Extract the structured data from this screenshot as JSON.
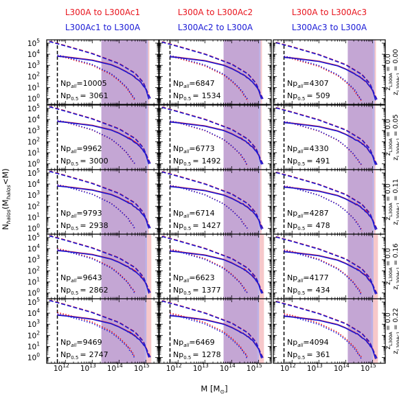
{
  "figure": {
    "xlabel": "M [M",
    "xlabel_sub": "⊙",
    "xlabel_close": "]",
    "ylabel_main": "N",
    "ylabel_sub1": "halos",
    "ylabel_mid": "(M",
    "ylabel_sub2": "halos",
    "ylabel_end": "<M)",
    "xtick_labels": [
      "10",
      "10",
      "10",
      "10"
    ],
    "xtick_exponents": [
      "12",
      "13",
      "14",
      "15"
    ],
    "ytick_labels": [
      "10",
      "10",
      "10",
      "10",
      "10",
      "10"
    ],
    "ytick_exponents": [
      "0",
      "1",
      "2",
      "3",
      "4",
      "5"
    ]
  },
  "colors": {
    "forward": "#e8141d",
    "reverse": "#1a1ad6",
    "red_band": "#f4b5b8",
    "blue_band": "#a9a9ef",
    "overlap_band": "#c4a4d2"
  },
  "columns": [
    {
      "title_red": "L300A to L300Ac1",
      "title_blue": "L300Ac1 to L300A"
    },
    {
      "title_red": "L300A to L300Ac2",
      "title_blue": "L300Ac2 to L300A"
    },
    {
      "title_red": "L300A to L300Ac3",
      "title_blue": "L300Ac3 to L300A"
    }
  ],
  "rows": [
    {
      "label_a": "z",
      "label_a_sub": "L300A",
      "label_a_val": "= 0.0",
      "label_b": "z",
      "label_b_sub": "L300Ac1",
      "label_b_val": "= 0.00"
    },
    {
      "label_a": "z",
      "label_a_sub": "L300A",
      "label_a_val": "= 0.0",
      "label_b": "z",
      "label_b_sub": "L300Ac1",
      "label_b_val": "= 0.05"
    },
    {
      "label_a": "z",
      "label_a_sub": "L300A",
      "label_a_val": "= 0.0",
      "label_b": "z",
      "label_b_sub": "L300Ac1",
      "label_b_val": "= 0.11"
    },
    {
      "label_a": "z",
      "label_a_sub": "L300A",
      "label_a_val": "= 0.0",
      "label_b": "z",
      "label_b_sub": "L300Ac1",
      "label_b_val": "= 0.16"
    },
    {
      "label_a": "z",
      "label_a_sub": "L300A",
      "label_a_val": "= 0.0",
      "label_b": "z",
      "label_b_sub": "L300Ac1",
      "label_b_val": "= 0.22"
    }
  ],
  "chart_data": {
    "type": "line",
    "layout": "grid 5 rows x 3 columns",
    "xscale": "log",
    "yscale": "log",
    "xlim": [
      200000000000.0,
      3000000000000000.0
    ],
    "ylim": [
      0.3,
      200000.0
    ],
    "grid": false,
    "annotation_labels": {
      "np_all": "Np",
      "np_all_sub": "all",
      "np_half": "Np",
      "np_half_sub": "0.5",
      "eq": "="
    },
    "panels": [
      [
        {
          "np_all": "10005",
          "np_half": "3061",
          "red_band": [
            1050000000000000.0,
            1350000000000000.0
          ],
          "blue_band": [
            22000000000000.0,
            1200000000000000.0
          ],
          "overlap": [
            22000000000000.0,
            1050000000000000.0
          ]
        },
        {
          "np_all": "6847",
          "np_half": "1534",
          "red_band": [
            1050000000000000.0,
            1350000000000000.0
          ],
          "blue_band": [
            50000000000000.0,
            1200000000000000.0
          ],
          "overlap": [
            50000000000000.0,
            1050000000000000.0
          ]
        },
        {
          "np_all": "4307",
          "np_half": "509",
          "red_band": [
            1050000000000000.0,
            1350000000000000.0
          ],
          "blue_band": [
            120000000000000.0,
            1200000000000000.0
          ],
          "overlap": [
            120000000000000.0,
            1050000000000000.0
          ]
        }
      ],
      [
        {
          "np_all": "9962",
          "np_half": "3000",
          "red_band": [
            1000000000000000.0,
            1300000000000000.0
          ],
          "blue_band": [
            22000000000000.0,
            1200000000000000.0
          ],
          "overlap": [
            22000000000000.0,
            1000000000000000.0
          ]
        },
        {
          "np_all": "6773",
          "np_half": "1492",
          "red_band": [
            1000000000000000.0,
            1300000000000000.0
          ],
          "blue_band": [
            50000000000000.0,
            1200000000000000.0
          ],
          "overlap": [
            50000000000000.0,
            1000000000000000.0
          ]
        },
        {
          "np_all": "4330",
          "np_half": "491",
          "red_band": [
            1000000000000000.0,
            1300000000000000.0
          ],
          "blue_band": [
            120000000000000.0,
            1200000000000000.0
          ],
          "overlap": [
            120000000000000.0,
            1000000000000000.0
          ]
        }
      ],
      [
        {
          "np_all": "9793",
          "np_half": "2938",
          "red_band": [
            1000000000000000.0,
            1300000000000000.0
          ],
          "blue_band": [
            22000000000000.0,
            1150000000000000.0
          ],
          "overlap": [
            22000000000000.0,
            1000000000000000.0
          ]
        },
        {
          "np_all": "6714",
          "np_half": "1427",
          "red_band": [
            1000000000000000.0,
            1300000000000000.0
          ],
          "blue_band": [
            50000000000000.0,
            1150000000000000.0
          ],
          "overlap": [
            50000000000000.0,
            1000000000000000.0
          ]
        },
        {
          "np_all": "4287",
          "np_half": "478",
          "red_band": [
            1000000000000000.0,
            1300000000000000.0
          ],
          "blue_band": [
            120000000000000.0,
            1150000000000000.0
          ],
          "overlap": [
            120000000000000.0,
            1000000000000000.0
          ]
        }
      ],
      [
        {
          "np_all": "9643",
          "np_half": "2862",
          "red_band": [
            950000000000000.0,
            1600000000000000.0
          ],
          "blue_band": [
            22000000000000.0,
            1100000000000000.0
          ],
          "overlap": [
            22000000000000.0,
            950000000000000.0
          ]
        },
        {
          "np_all": "6623",
          "np_half": "1377",
          "red_band": [
            950000000000000.0,
            1600000000000000.0
          ],
          "blue_band": [
            50000000000000.0,
            1100000000000000.0
          ],
          "overlap": [
            50000000000000.0,
            950000000000000.0
          ]
        },
        {
          "np_all": "4177",
          "np_half": "434",
          "red_band": [
            950000000000000.0,
            1600000000000000.0
          ],
          "blue_band": [
            120000000000000.0,
            1100000000000000.0
          ],
          "overlap": [
            120000000000000.0,
            950000000000000.0
          ]
        }
      ],
      [
        {
          "np_all": "9469",
          "np_half": "2747",
          "red_band": [
            900000000000000.0,
            1600000000000000.0
          ],
          "blue_band": [
            22000000000000.0,
            1050000000000000.0
          ],
          "overlap": [
            22000000000000.0,
            900000000000000.0
          ]
        },
        {
          "np_all": "6469",
          "np_half": "1278",
          "red_band": [
            900000000000000.0,
            1600000000000000.0
          ],
          "blue_band": [
            50000000000000.0,
            1050000000000000.0
          ],
          "overlap": [
            50000000000000.0,
            900000000000000.0
          ]
        },
        {
          "np_all": "4094",
          "np_half": "361",
          "red_band": [
            900000000000000.0,
            1600000000000000.0
          ],
          "blue_band": [
            120000000000000.0,
            1050000000000000.0
          ],
          "overlap": [
            120000000000000.0,
            900000000000000.0
          ]
        }
      ]
    ],
    "series": [
      {
        "style": "dashed",
        "description_points": [
          [
            250000000000.0,
            150000.0
          ],
          [
            1000000000000.0,
            60000.0
          ],
          [
            10000000000000.0,
            12000.0
          ],
          [
            100000000000000.0,
            1500.0
          ],
          [
            400000000000000.0,
            200
          ],
          [
            800000000000000.0,
            30
          ],
          [
            1200000000000000.0,
            3
          ],
          [
            1500000000000000.0,
            1
          ]
        ]
      },
      {
        "style": "solid",
        "description_points": [
          [
            500000000000.0,
            7000.0
          ],
          [
            1000000000000.0,
            6000.0
          ],
          [
            10000000000000.0,
            3000.0
          ],
          [
            50000000000000.0,
            1200.0
          ],
          [
            100000000000000.0,
            600
          ],
          [
            300000000000000.0,
            150
          ],
          [
            600000000000000.0,
            40
          ],
          [
            1000000000000000.0,
            8
          ],
          [
            1300000000000000.0,
            1
          ]
        ]
      },
      {
        "style": "dotted",
        "description_points": [
          [
            500000000000.0,
            7000.0
          ],
          [
            1000000000000.0,
            5000.0
          ],
          [
            10000000000000.0,
            1000.0
          ],
          [
            50000000000000.0,
            150
          ],
          [
            100000000000000.0,
            40
          ],
          [
            200000000000000.0,
            8
          ],
          [
            300000000000000.0,
            2
          ],
          [
            400000000000000.0,
            0.7
          ]
        ]
      },
      {
        "style": "vertical-dashed",
        "x": 500000000000.0
      }
    ]
  }
}
